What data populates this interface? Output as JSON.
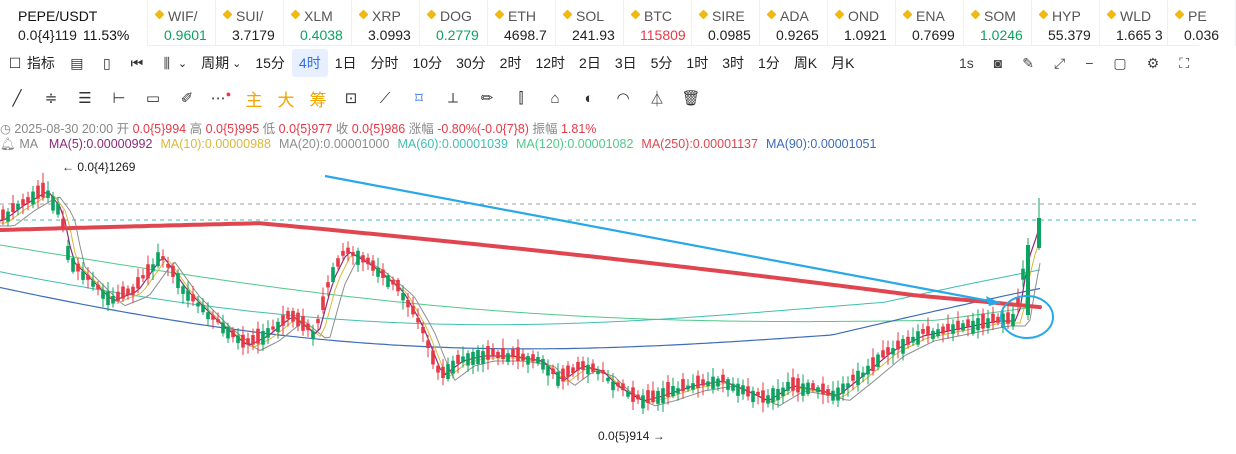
{
  "ticker": [
    {
      "symbol": "PEPE/USDT",
      "price": "0.0{4}119",
      "change": "11.53%",
      "color": "#222222",
      "first": true
    },
    {
      "symbol": "WIF/",
      "price": "0.9601",
      "color": "#0ba360"
    },
    {
      "symbol": "SUI/",
      "price": "3.7179",
      "color": "#222222"
    },
    {
      "symbol": "XLM",
      "price": "0.4038",
      "color": "#0ba360"
    },
    {
      "symbol": "XRP",
      "price": "3.0993",
      "color": "#222222"
    },
    {
      "symbol": "DOG",
      "price": "0.2779",
      "color": "#0ba360"
    },
    {
      "symbol": "ETH",
      "price": "4698.7",
      "color": "#222222"
    },
    {
      "symbol": "SOL",
      "price": "241.93",
      "color": "#222222"
    },
    {
      "symbol": "BTC",
      "price": "115809",
      "color": "#e63946"
    },
    {
      "symbol": "SIRE",
      "price": "0.0985",
      "color": "#222222"
    },
    {
      "symbol": "ADA",
      "price": "0.9265",
      "color": "#222222"
    },
    {
      "symbol": "OND",
      "price": "1.0921",
      "color": "#222222"
    },
    {
      "symbol": "ENA",
      "price": "0.7699",
      "color": "#222222"
    },
    {
      "symbol": "SOM",
      "price": "1.0246",
      "color": "#0ba360"
    },
    {
      "symbol": "HYP",
      "price": "55.379",
      "color": "#222222"
    },
    {
      "symbol": "WLD",
      "price": "1.665 3",
      "color": "#222222"
    },
    {
      "symbol": "PE",
      "price": "0.036",
      "color": "#222222"
    }
  ],
  "toolbar": {
    "indicators_label": "指标",
    "period_label": "周期",
    "intervals": [
      "15分",
      "4时",
      "1日",
      "分时",
      "10分",
      "30分",
      "2时",
      "12时",
      "2日",
      "3日",
      "5分",
      "1时",
      "3时",
      "1分",
      "周K",
      "月K"
    ],
    "active_interval": "4时",
    "refresh": "1s"
  },
  "draw_tools": {
    "zhu": "主",
    "da": "大",
    "chou": "筹"
  },
  "info_line": {
    "date": "2025-08-30 20:00",
    "open_label": "开",
    "open": "0.0{5}994",
    "high_label": "高",
    "high": "0.0{5}995",
    "low_label": "低",
    "low": "0.0{5}977",
    "close_label": "收",
    "close": "0.0{5}986",
    "change_label": "涨幅",
    "change": "-0.80%(-0.0{7}8)",
    "amp_label": "振幅",
    "amp": "1.81%"
  },
  "ma_line": {
    "label": "MA",
    "items": [
      {
        "text": "MA(5):0.00000992",
        "color": "#8e2a7a"
      },
      {
        "text": "MA(10):0.00000988",
        "color": "#d8b93a"
      },
      {
        "text": "MA(20):0.00001000",
        "color": "#8e8e8e"
      },
      {
        "text": "MA(60):0.00001039",
        "color": "#3fbfb0"
      },
      {
        "text": "MA(120):0.00001082",
        "color": "#4fc98a"
      },
      {
        "text": "MA(250):0.00001137",
        "color": "#e0464f"
      },
      {
        "text": "MA(90):0.00001051",
        "color": "#3d6cb9"
      }
    ]
  },
  "chart_labels": {
    "high": "0.0{4}1269",
    "low": "0.0{5}914"
  },
  "colors": {
    "up": "#0ba360",
    "down": "#e63946",
    "arrow": "#29a8e8",
    "accent": "#2f6fe0"
  }
}
